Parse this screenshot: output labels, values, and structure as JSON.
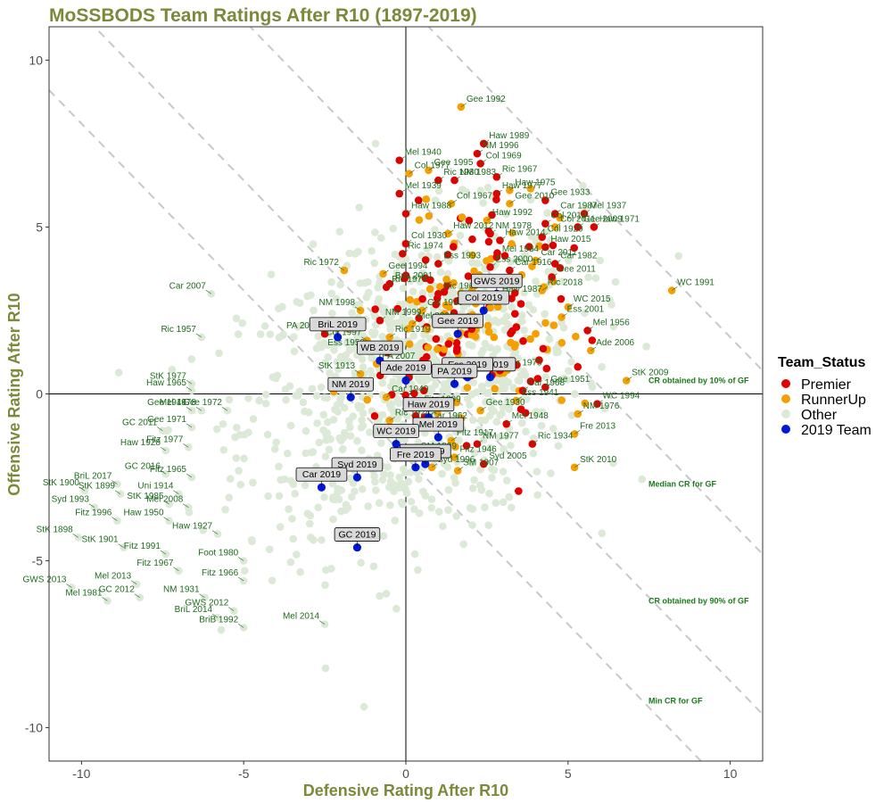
{
  "chart_data": {
    "type": "scatter",
    "title": "MoSSBODS Team Ratings After R10 (1897-2019)",
    "xlabel": "Defensive Rating After R10",
    "ylabel": "Offensive Rating After R10",
    "xlim": [
      -11,
      11
    ],
    "ylim": [
      -11,
      11
    ],
    "xticks": [
      -10,
      -5,
      0,
      5,
      10
    ],
    "yticks": [
      -10,
      -5,
      0,
      5,
      10
    ],
    "grid": false,
    "legend": {
      "title": "Team_Status",
      "placement": "right",
      "entries": [
        {
          "name": "Premier",
          "color": "#e00000"
        },
        {
          "name": "RunnerUp",
          "color": "#f5a000"
        },
        {
          "name": "Other",
          "color": "#dbe9d6"
        },
        {
          "name": "2019 Team",
          "color": "#0018d8"
        }
      ]
    },
    "reference_lines": [
      {
        "label": "CR obtained by 10% of GF",
        "sum": 11.7,
        "label_y": 0.4
      },
      {
        "label": "Median CR for GF",
        "sum": 6.2,
        "label_y": -2.7
      },
      {
        "label": "CR obtained by 90% of GF",
        "sum": 1.4,
        "label_y": -6.2
      },
      {
        "label": "Min CR for GF",
        "sum": -1.9,
        "label_y": -9.2
      }
    ],
    "labeled_points": [
      {
        "label": "Gee 1992",
        "x": 1.7,
        "y": 8.6,
        "status": "RunnerUp"
      },
      {
        "label": "Haw 1989",
        "x": 2.4,
        "y": 7.5,
        "status": "Premier"
      },
      {
        "label": "NM 1996",
        "x": 2.2,
        "y": 7.2,
        "status": "Premier"
      },
      {
        "label": "Mel 1940",
        "x": -0.2,
        "y": 7.0,
        "status": "Premier"
      },
      {
        "label": "Gee 1995",
        "x": 0.7,
        "y": 6.7,
        "status": "RunnerUp"
      },
      {
        "label": "Col 1969",
        "x": 2.3,
        "y": 6.9,
        "status": "Premier"
      },
      {
        "label": "NM 1983",
        "x": 1.5,
        "y": 6.4,
        "status": "Premier"
      },
      {
        "label": "Col 1977",
        "x": 0.1,
        "y": 6.6,
        "status": "RunnerUp"
      },
      {
        "label": "Ric 1967",
        "x": 2.8,
        "y": 6.5,
        "status": "Premier"
      },
      {
        "label": "Haw 1975",
        "x": 3.2,
        "y": 6.1,
        "status": "RunnerUp"
      },
      {
        "label": "Ric 1980",
        "x": 1.0,
        "y": 6.4,
        "status": "Premier"
      },
      {
        "label": "Mel 1939",
        "x": -0.2,
        "y": 6.0,
        "status": "Premier"
      },
      {
        "label": "Haw 1977",
        "x": 2.8,
        "y": 6.0,
        "status": "Premier"
      },
      {
        "label": "Gee 1933",
        "x": 4.3,
        "y": 5.8,
        "status": "Premier"
      },
      {
        "label": "Gee 2010",
        "x": 3.2,
        "y": 5.7,
        "status": "RunnerUp"
      },
      {
        "label": "Col 1967",
        "x": 1.4,
        "y": 5.7,
        "status": "RunnerUp"
      },
      {
        "label": "Car 1987",
        "x": 4.6,
        "y": 5.4,
        "status": "Premier"
      },
      {
        "label": "Mel 1937",
        "x": 5.5,
        "y": 5.4,
        "status": "Premier"
      },
      {
        "label": "Haw 1988",
        "x": 0.0,
        "y": 5.4,
        "status": "Premier"
      },
      {
        "label": "Haw 1992",
        "x": 2.5,
        "y": 5.2,
        "status": "RunnerUp"
      },
      {
        "label": "Col 2010",
        "x": 4.3,
        "y": 5.1,
        "status": "Premier"
      },
      {
        "label": "Col 2011",
        "x": 4.6,
        "y": 5.0,
        "status": "RunnerUp"
      },
      {
        "label": "Haw 1971",
        "x": 5.8,
        "y": 5.0,
        "status": "Premier"
      },
      {
        "label": "Haw 2012",
        "x": 1.3,
        "y": 4.8,
        "status": "RunnerUp"
      },
      {
        "label": "NM 1978",
        "x": 2.6,
        "y": 4.8,
        "status": "Premier"
      },
      {
        "label": "Gee 2009",
        "x": 5.3,
        "y": 5.0,
        "status": "Premier"
      },
      {
        "label": "Col 1929",
        "x": 4.2,
        "y": 4.7,
        "status": "Premier"
      },
      {
        "label": "Col 1930",
        "x": 0.0,
        "y": 4.5,
        "status": "Premier"
      },
      {
        "label": "Haw 2014",
        "x": 2.9,
        "y": 4.6,
        "status": "Premier"
      },
      {
        "label": "Haw 2015",
        "x": 4.3,
        "y": 4.4,
        "status": "Premier"
      },
      {
        "label": "Ric 1974",
        "x": -0.1,
        "y": 4.2,
        "status": "Premier"
      },
      {
        "label": "Mel 1964",
        "x": 2.8,
        "y": 4.1,
        "status": "Premier"
      },
      {
        "label": "Car 2011",
        "x": 4.0,
        "y": 4.0,
        "status": "RunnerUp"
      },
      {
        "label": "Car 1982",
        "x": 4.6,
        "y": 3.9,
        "status": "Premier"
      },
      {
        "label": "Ric 1972",
        "x": -1.9,
        "y": 3.7,
        "status": "RunnerUp"
      },
      {
        "label": "Ess 1993",
        "x": 1.0,
        "y": 3.9,
        "status": "Premier"
      },
      {
        "label": "Ess 2000",
        "x": 2.6,
        "y": 3.8,
        "status": "Premier"
      },
      {
        "label": "Car 1916",
        "x": 3.2,
        "y": 3.7,
        "status": "Premier"
      },
      {
        "label": "Gee 1994",
        "x": -0.7,
        "y": 3.6,
        "status": "RunnerUp"
      },
      {
        "label": "Gee 2011",
        "x": 4.5,
        "y": 3.5,
        "status": "Premier"
      },
      {
        "label": "BriL 2001",
        "x": -0.5,
        "y": 3.3,
        "status": "Premier"
      },
      {
        "label": "Ric 1973",
        "x": -0.6,
        "y": 3.2,
        "status": "Premier"
      },
      {
        "label": "Ric 1969",
        "x": 1.0,
        "y": 3.0,
        "status": "Premier"
      },
      {
        "label": "Ric 2018",
        "x": 4.2,
        "y": 3.1,
        "status": "RunnerUp"
      },
      {
        "label": "WC 1991",
        "x": 8.2,
        "y": 3.1,
        "status": "RunnerUp"
      },
      {
        "label": "Car 2007",
        "x": -6.0,
        "y": 3.0,
        "status": "Other"
      },
      {
        "label": "Haw 1987",
        "x": 2.8,
        "y": 2.9,
        "status": "RunnerUp"
      },
      {
        "label": "NM 1998",
        "x": -1.4,
        "y": 2.5,
        "status": "RunnerUp"
      },
      {
        "label": "Col 1939",
        "x": 0.5,
        "y": 2.5,
        "status": "RunnerUp"
      },
      {
        "label": "WC 2015",
        "x": 5.0,
        "y": 2.6,
        "status": "RunnerUp"
      },
      {
        "label": "Ess 2001",
        "x": 4.8,
        "y": 2.3,
        "status": "RunnerUp"
      },
      {
        "label": "NM 1999",
        "x": -0.8,
        "y": 2.2,
        "status": "Premier"
      },
      {
        "label": "Mel 2000",
        "x": 0.2,
        "y": 2.1,
        "status": "RunnerUp"
      },
      {
        "label": "Mel 1956",
        "x": 5.6,
        "y": 1.9,
        "status": "Premier"
      },
      {
        "label": "Ric 1957",
        "x": -6.3,
        "y": 1.7,
        "status": "Other"
      },
      {
        "label": "PA 2004",
        "x": -2.5,
        "y": 1.8,
        "status": "Premier"
      },
      {
        "label": "Ric 1919",
        "x": -0.5,
        "y": 1.7,
        "status": "RunnerUp"
      },
      {
        "label": "Col 1997",
        "x": -1.2,
        "y": 1.6,
        "status": "RunnerUp"
      },
      {
        "label": "Ess 1959",
        "x": -1.1,
        "y": 1.3,
        "status": "RunnerUp"
      },
      {
        "label": "Ade 2006",
        "x": 5.7,
        "y": 1.3,
        "status": "RunnerUp"
      },
      {
        "label": "StK 2009",
        "x": 6.8,
        "y": 0.4,
        "status": "RunnerUp"
      },
      {
        "label": "PA 2007",
        "x": -0.9,
        "y": 0.9,
        "status": "RunnerUp"
      },
      {
        "label": "StK 1913",
        "x": -1.4,
        "y": 0.6,
        "status": "RunnerUp"
      },
      {
        "label": "StK 1977",
        "x": -6.6,
        "y": 0.3,
        "status": "Other"
      },
      {
        "label": "Car 1975",
        "x": 2.9,
        "y": 0.7,
        "status": "Premier"
      },
      {
        "label": "Car 1947",
        "x": 0.1,
        "y": 0.5,
        "status": "Premier"
      },
      {
        "label": "Gee 1951",
        "x": 4.3,
        "y": 0.2,
        "status": "Premier"
      },
      {
        "label": "Haw 1965",
        "x": -6.6,
        "y": 0.1,
        "status": "Other"
      },
      {
        "label": "Car 1968",
        "x": 3.6,
        "y": 0.1,
        "status": "Premier"
      },
      {
        "label": "Ess 1941",
        "x": 3.4,
        "y": -0.2,
        "status": "RunnerUp"
      },
      {
        "label": "WC 1994",
        "x": 5.9,
        "y": -0.3,
        "status": "Premier"
      },
      {
        "label": "Car 1940",
        "x": -0.6,
        "y": -0.1,
        "status": "RunnerUp"
      },
      {
        "label": "Gee 1946",
        "x": -6.6,
        "y": -0.5,
        "status": "Other"
      },
      {
        "label": "Mel 1978",
        "x": -6.3,
        "y": -0.5,
        "status": "Other"
      },
      {
        "label": "Gee 1972",
        "x": -5.5,
        "y": -0.5,
        "status": "Other"
      },
      {
        "label": "Fitz 1899",
        "x": 0.4,
        "y": -0.4,
        "status": "Premier"
      },
      {
        "label": "NM 1976",
        "x": 5.3,
        "y": -0.6,
        "status": "RunnerUp"
      },
      {
        "label": "Gee 1930",
        "x": 2.3,
        "y": -0.5,
        "status": "RunnerUp"
      },
      {
        "label": "Ric 1924",
        "x": -0.5,
        "y": -0.8,
        "status": "RunnerUp"
      },
      {
        "label": "GC 2011",
        "x": -7.5,
        "y": -1.1,
        "status": "Other"
      },
      {
        "label": "Gee 1971",
        "x": -6.6,
        "y": -1.0,
        "status": "Other"
      },
      {
        "label": "Car 1962",
        "x": 0.6,
        "y": -0.9,
        "status": "RunnerUp"
      },
      {
        "label": "Mel 1948",
        "x": 3.1,
        "y": -0.9,
        "status": "Premier"
      },
      {
        "label": "Fre 2013",
        "x": 5.2,
        "y": -1.2,
        "status": "RunnerUp"
      },
      {
        "label": "Fitz 1917",
        "x": 1.4,
        "y": -1.4,
        "status": "RunnerUp"
      },
      {
        "label": "NM 1977",
        "x": 2.2,
        "y": -1.5,
        "status": "Premier"
      },
      {
        "label": "Haw 1928",
        "x": -7.4,
        "y": -1.7,
        "status": "Other"
      },
      {
        "label": "Fitz 1977",
        "x": -6.7,
        "y": -1.6,
        "status": "Other"
      },
      {
        "label": "Ric 1934",
        "x": 3.9,
        "y": -1.5,
        "status": "Premier"
      },
      {
        "label": "SM 1899",
        "x": 0.3,
        "y": -1.8,
        "status": "RunnerUp"
      },
      {
        "label": "Fitz 1946",
        "x": 1.5,
        "y": -1.9,
        "status": "RunnerUp"
      },
      {
        "label": "Syd 2005",
        "x": 2.4,
        "y": -2.1,
        "status": "Premier"
      },
      {
        "label": "StK 2010",
        "x": 5.2,
        "y": -2.2,
        "status": "RunnerUp"
      },
      {
        "label": "GC 2016",
        "x": -7.4,
        "y": -2.4,
        "status": "Other"
      },
      {
        "label": "Fitz 1965",
        "x": -6.6,
        "y": -2.5,
        "status": "Other"
      },
      {
        "label": "Syd 1996",
        "x": 0.8,
        "y": -2.2,
        "status": "RunnerUp"
      },
      {
        "label": "SM 1907",
        "x": 1.6,
        "y": -2.3,
        "status": "RunnerUp"
      },
      {
        "label": "BriL 2017",
        "x": -8.9,
        "y": -2.7,
        "status": "Other"
      },
      {
        "label": "StK 1900",
        "x": -9.9,
        "y": -2.9,
        "status": "Other"
      },
      {
        "label": "StK 1899",
        "x": -8.8,
        "y": -3.0,
        "status": "Other"
      },
      {
        "label": "Uni 1914",
        "x": -7.0,
        "y": -3.0,
        "status": "Other"
      },
      {
        "label": "Syd 1993",
        "x": -9.6,
        "y": -3.4,
        "status": "Other"
      },
      {
        "label": "StK 1985",
        "x": -7.3,
        "y": -3.3,
        "status": "Other"
      },
      {
        "label": "Mel 2008",
        "x": -6.7,
        "y": -3.4,
        "status": "Other"
      },
      {
        "label": "Fitz 1996",
        "x": -8.9,
        "y": -3.8,
        "status": "Other"
      },
      {
        "label": "Haw 1950",
        "x": -7.3,
        "y": -3.8,
        "status": "Other"
      },
      {
        "label": "StK 1898",
        "x": -10.1,
        "y": -4.3,
        "status": "Other"
      },
      {
        "label": "Haw 1927",
        "x": -5.8,
        "y": -4.2,
        "status": "Other"
      },
      {
        "label": "StK 1901",
        "x": -8.7,
        "y": -4.6,
        "status": "Other"
      },
      {
        "label": "Fitz 1991",
        "x": -7.4,
        "y": -4.8,
        "status": "Other"
      },
      {
        "label": "Foot 1980",
        "x": -5.0,
        "y": -5.0,
        "status": "Other"
      },
      {
        "label": "Fitz 1967",
        "x": -7.0,
        "y": -5.3,
        "status": "Other"
      },
      {
        "label": "Mel 2013",
        "x": -8.3,
        "y": -5.7,
        "status": "Other"
      },
      {
        "label": "Fitz 1966",
        "x": -5.0,
        "y": -5.6,
        "status": "Other"
      },
      {
        "label": "GWS 2013",
        "x": -10.3,
        "y": -5.8,
        "status": "Other"
      },
      {
        "label": "GC 2012",
        "x": -8.2,
        "y": -6.1,
        "status": "Other"
      },
      {
        "label": "NM 1931",
        "x": -6.2,
        "y": -6.1,
        "status": "Other"
      },
      {
        "label": "Mel 1981",
        "x": -9.2,
        "y": -6.2,
        "status": "Other"
      },
      {
        "label": "GWS 2012",
        "x": -5.3,
        "y": -6.5,
        "status": "Other"
      },
      {
        "label": "BriL 2014",
        "x": -5.8,
        "y": -6.7,
        "status": "Other"
      },
      {
        "label": "BriB 1992",
        "x": -5.0,
        "y": -7.0,
        "status": "Other"
      },
      {
        "label": "Mel 2014",
        "x": -2.5,
        "y": -6.9,
        "status": "Other"
      }
    ],
    "team_2019": [
      {
        "label": "GWS 2019",
        "x": 2.8,
        "y": 3.0
      },
      {
        "label": "Col 2019",
        "x": 2.4,
        "y": 2.5
      },
      {
        "label": "BriL 2019",
        "x": -2.1,
        "y": 1.7
      },
      {
        "label": "Gee 2019",
        "x": 1.6,
        "y": 1.8
      },
      {
        "label": "WB 2019",
        "x": -0.8,
        "y": 1.0
      },
      {
        "label": "Ric 2019",
        "x": 2.6,
        "y": 0.5
      },
      {
        "label": "Ess 2019",
        "x": 1.9,
        "y": 0.5
      },
      {
        "label": "Ade 2019",
        "x": 0.0,
        "y": 0.4
      },
      {
        "label": "PA 2019",
        "x": 1.5,
        "y": 0.3
      },
      {
        "label": "NM 2019",
        "x": -1.7,
        "y": -0.1
      },
      {
        "label": "Haw 2019",
        "x": 0.7,
        "y": -0.7
      },
      {
        "label": "Mel 2019",
        "x": 1.0,
        "y": -1.3
      },
      {
        "label": "WC 2019",
        "x": -0.3,
        "y": -1.5
      },
      {
        "label": "StK 2019",
        "x": 0.6,
        "y": -2.1
      },
      {
        "label": "Syd 2019",
        "x": -1.5,
        "y": -2.5
      },
      {
        "label": "Fre 2019",
        "x": 0.3,
        "y": -2.2
      },
      {
        "label": "Car 2019",
        "x": -2.6,
        "y": -2.8
      },
      {
        "label": "GC 2019",
        "x": -1.5,
        "y": -4.6
      }
    ]
  }
}
